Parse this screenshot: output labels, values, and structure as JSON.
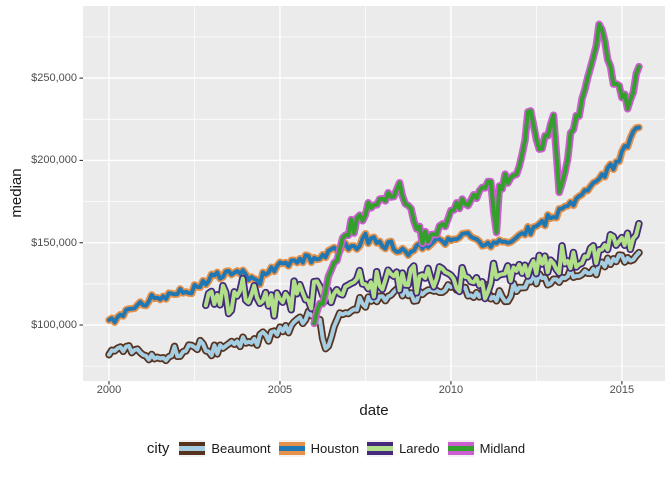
{
  "axes": {
    "y_title": "median",
    "x_title": "date"
  },
  "legend": {
    "title": "city"
  },
  "style": {
    "panel_bg": "#ebebeb",
    "grid_color": "#ffffff",
    "tick_mark_color": "#333333",
    "tick_text_color": "#4d4d4d",
    "axis_title_color": "#1a1a1a",
    "legend_key_bg": "#f2f2f2",
    "outline_stroke_width": 7.5,
    "fill_stroke_width": 4
  },
  "chart_data": {
    "type": "line",
    "title": "",
    "xlabel": "date",
    "ylabel": "median",
    "legend_title": "city",
    "legend_position": "bottom",
    "grid": "white major and minor gridlines on gray panel",
    "x_domain": [
      1999.24,
      2016.26
    ],
    "y_domain": [
      66000,
      293800
    ],
    "x_ticks": [
      {
        "v": 2000,
        "label": "2000"
      },
      {
        "v": 2005,
        "label": "2005"
      },
      {
        "v": 2010,
        "label": "2010"
      },
      {
        "v": 2015,
        "label": "2015"
      }
    ],
    "x_minor": [
      2002.5,
      2007.5,
      2012.5
    ],
    "y_ticks": [
      {
        "v": 100000,
        "label": "$100,000"
      },
      {
        "v": 150000,
        "label": "$150,000"
      },
      {
        "v": 200000,
        "label": "$200,000"
      },
      {
        "v": 250000,
        "label": "$250,000"
      }
    ],
    "y_minor": [
      75000,
      125000,
      175000,
      225000,
      275000
    ],
    "frequency": "monthly",
    "series": [
      {
        "name": "Beaumont",
        "fill": "#a6cee3",
        "outline": "#57331f",
        "noise": 5500,
        "anchors": [
          [
            2000.0,
            82000
          ],
          [
            2000.5,
            86000
          ],
          [
            2001.0,
            84000
          ],
          [
            2001.6,
            79000
          ],
          [
            2002.0,
            85000
          ],
          [
            2002.5,
            87000
          ],
          [
            2003.0,
            84000
          ],
          [
            2003.5,
            88000
          ],
          [
            2004.0,
            90000
          ],
          [
            2004.5,
            92000
          ],
          [
            2005.0,
            97000
          ],
          [
            2005.5,
            101000
          ],
          [
            2006.0,
            106000
          ],
          [
            2006.4,
            88000
          ],
          [
            2006.8,
            108000
          ],
          [
            2007.0,
            110000
          ],
          [
            2007.5,
            114000
          ],
          [
            2008.0,
            116000
          ],
          [
            2008.5,
            120000
          ],
          [
            2009.0,
            118000
          ],
          [
            2009.5,
            121000
          ],
          [
            2010.0,
            123000
          ],
          [
            2010.5,
            118000
          ],
          [
            2011.0,
            120000
          ],
          [
            2011.5,
            117000
          ],
          [
            2012.0,
            124000
          ],
          [
            2012.5,
            128000
          ],
          [
            2013.0,
            126000
          ],
          [
            2013.5,
            130000
          ],
          [
            2014.0,
            133000
          ],
          [
            2014.5,
            136000
          ],
          [
            2015.0,
            139000
          ],
          [
            2015.5,
            144000
          ]
        ]
      },
      {
        "name": "Houston",
        "fill": "#1f78b4",
        "outline": "#e5914a",
        "noise": 3800,
        "anchors": [
          [
            2000.0,
            103000
          ],
          [
            2000.5,
            108000
          ],
          [
            2001.0,
            114000
          ],
          [
            2001.5,
            117000
          ],
          [
            2002.0,
            119000
          ],
          [
            2002.5,
            123000
          ],
          [
            2003.0,
            129000
          ],
          [
            2003.5,
            133000
          ],
          [
            2004.0,
            132000
          ],
          [
            2004.3,
            126000
          ],
          [
            2005.0,
            137000
          ],
          [
            2005.5,
            140000
          ],
          [
            2006.0,
            141000
          ],
          [
            2006.5,
            144000
          ],
          [
            2007.0,
            147000
          ],
          [
            2007.5,
            152000
          ],
          [
            2008.0,
            151000
          ],
          [
            2008.7,
            143000
          ],
          [
            2009.0,
            146000
          ],
          [
            2009.5,
            150000
          ],
          [
            2010.0,
            152000
          ],
          [
            2010.4,
            156000
          ],
          [
            2011.0,
            147000
          ],
          [
            2011.5,
            150000
          ],
          [
            2012.0,
            155000
          ],
          [
            2012.5,
            160000
          ],
          [
            2013.0,
            167000
          ],
          [
            2013.5,
            174000
          ],
          [
            2014.0,
            183000
          ],
          [
            2014.5,
            192000
          ],
          [
            2015.0,
            203000
          ],
          [
            2015.5,
            220000
          ]
        ]
      },
      {
        "name": "Laredo",
        "fill": "#b2df8a",
        "outline": "#45297d",
        "noise": 11000,
        "anchors": [
          [
            2002.83,
            112000
          ],
          [
            2003.0,
            116000
          ],
          [
            2003.5,
            113000
          ],
          [
            2004.0,
            119000
          ],
          [
            2004.5,
            116000
          ],
          [
            2005.0,
            114000
          ],
          [
            2005.5,
            119000
          ],
          [
            2006.0,
            117000
          ],
          [
            2006.5,
            121000
          ],
          [
            2007.0,
            121000
          ],
          [
            2007.5,
            124000
          ],
          [
            2008.0,
            127000
          ],
          [
            2008.5,
            130000
          ],
          [
            2009.0,
            126000
          ],
          [
            2009.5,
            129000
          ],
          [
            2010.0,
            130000
          ],
          [
            2010.5,
            127000
          ],
          [
            2011.0,
            125000
          ],
          [
            2011.5,
            130000
          ],
          [
            2012.0,
            134000
          ],
          [
            2012.5,
            139000
          ],
          [
            2013.0,
            138000
          ],
          [
            2013.5,
            142000
          ],
          [
            2014.0,
            144000
          ],
          [
            2014.5,
            147000
          ],
          [
            2015.0,
            149000
          ],
          [
            2015.5,
            155000
          ]
        ]
      },
      {
        "name": "Midland",
        "fill": "#33a02c",
        "outline": "#cd5ed1",
        "noise": 6500,
        "anchors": [
          [
            2006.0,
            101000
          ],
          [
            2006.25,
            118000
          ],
          [
            2006.5,
            135000
          ],
          [
            2007.0,
            158000
          ],
          [
            2007.5,
            168000
          ],
          [
            2008.0,
            176000
          ],
          [
            2008.5,
            184000
          ],
          [
            2008.9,
            168000
          ],
          [
            2009.2,
            150000
          ],
          [
            2009.6,
            158000
          ],
          [
            2010.0,
            169000
          ],
          [
            2010.5,
            176000
          ],
          [
            2011.0,
            182000
          ],
          [
            2011.2,
            186000
          ],
          [
            2011.3,
            150000
          ],
          [
            2011.4,
            184000
          ],
          [
            2011.6,
            188000
          ],
          [
            2012.0,
            193000
          ],
          [
            2012.3,
            232000
          ],
          [
            2012.6,
            205000
          ],
          [
            2013.0,
            226000
          ],
          [
            2013.2,
            178000
          ],
          [
            2013.5,
            215000
          ],
          [
            2013.8,
            232000
          ],
          [
            2014.0,
            252000
          ],
          [
            2014.4,
            284000
          ],
          [
            2014.7,
            250000
          ],
          [
            2015.0,
            241000
          ],
          [
            2015.2,
            233000
          ],
          [
            2015.5,
            257000
          ]
        ]
      }
    ]
  }
}
